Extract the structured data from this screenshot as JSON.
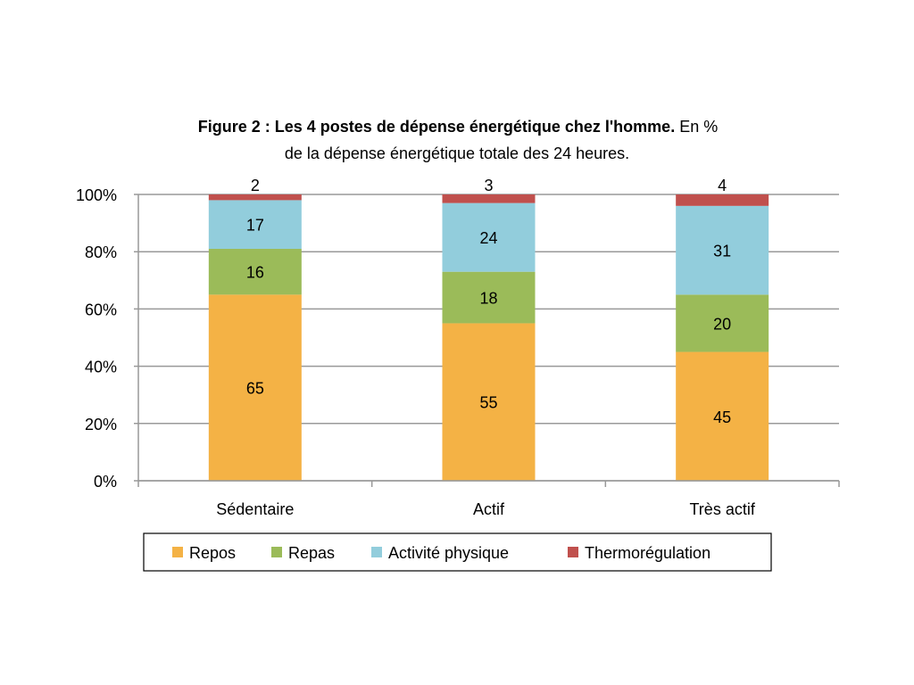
{
  "chart_data": {
    "type": "bar",
    "stacked": true,
    "title_bold": "Figure 2 : Les 4 postes de dépense énergétique chez l'homme.",
    "title_rest": " En %",
    "subtitle": "de la dépense  énergétique totale des 24 heures.",
    "categories": [
      "Sédentaire",
      "Actif",
      "Très actif"
    ],
    "series": [
      {
        "name": "Repos",
        "color": "#F4B245",
        "values": [
          65,
          55,
          45
        ]
      },
      {
        "name": "Repas",
        "color": "#9BBB59",
        "values": [
          16,
          18,
          20
        ]
      },
      {
        "name": "Activité physique",
        "color": "#92CDDC",
        "values": [
          17,
          24,
          31
        ]
      },
      {
        "name": "Thermorégulation",
        "color": "#C0504D",
        "values": [
          2,
          3,
          4
        ]
      }
    ],
    "yticks": [
      "0%",
      "20%",
      "40%",
      "60%",
      "80%",
      "100%"
    ],
    "ylim": [
      0,
      100
    ],
    "xlabel": "",
    "ylabel": "",
    "grid": true,
    "legend_position": "bottom"
  }
}
